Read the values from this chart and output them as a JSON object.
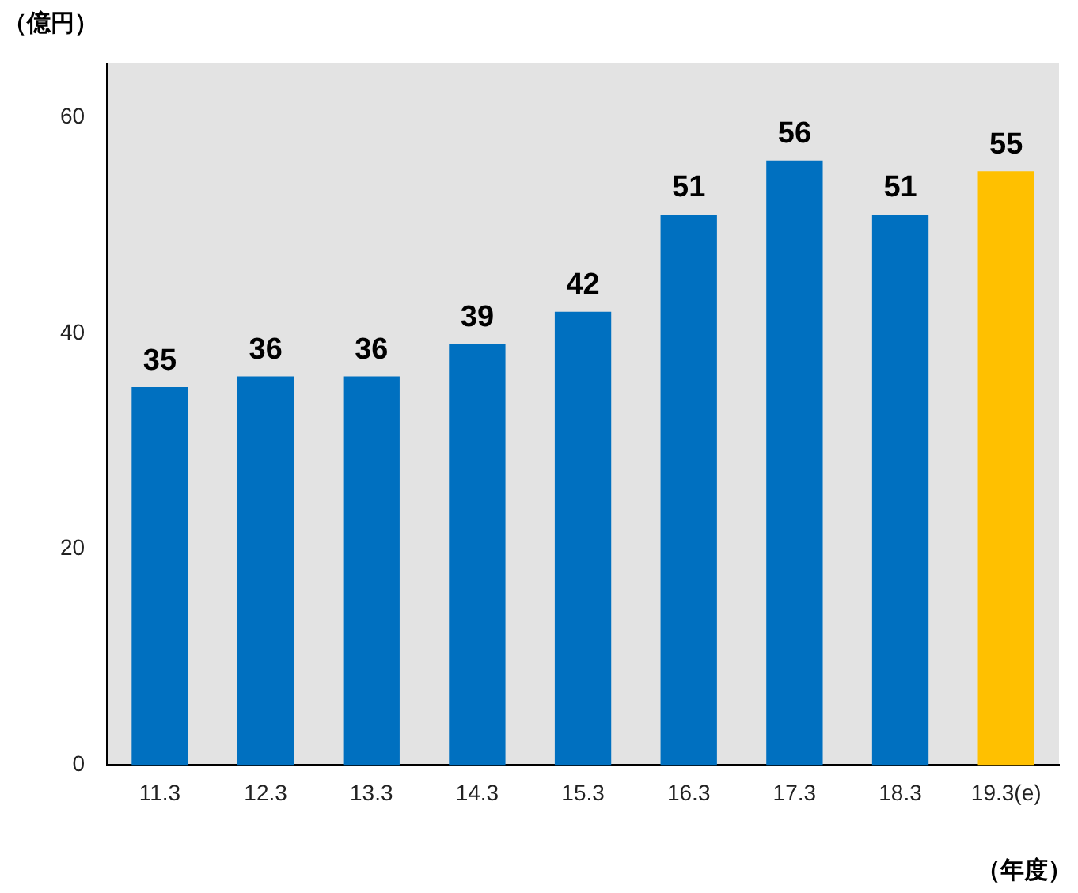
{
  "chart_data": {
    "type": "bar",
    "ylabel": "（億円）",
    "xlabel": "（年度）",
    "categories": [
      "11.3",
      "12.3",
      "13.3",
      "14.3",
      "15.3",
      "16.3",
      "17.3",
      "18.3",
      "19.3(e)"
    ],
    "values": [
      35,
      36,
      36,
      39,
      42,
      51,
      56,
      51,
      55
    ],
    "colors": [
      "#0070c0",
      "#0070c0",
      "#0070c0",
      "#0070c0",
      "#0070c0",
      "#0070c0",
      "#0070c0",
      "#0070c0",
      "#ffc000"
    ],
    "ylim": [
      0,
      65
    ],
    "yticks": [
      0,
      20,
      40,
      60
    ],
    "grid": false,
    "legend": false,
    "data_labels": true
  }
}
